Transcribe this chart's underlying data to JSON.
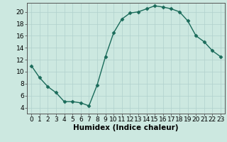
{
  "x": [
    0,
    1,
    2,
    3,
    4,
    5,
    6,
    7,
    8,
    9,
    10,
    11,
    12,
    13,
    14,
    15,
    16,
    17,
    18,
    19,
    20,
    21,
    22,
    23
  ],
  "y": [
    11,
    9,
    7.5,
    6.5,
    5,
    5,
    4.8,
    4.3,
    7.8,
    12.5,
    16.5,
    18.8,
    19.8,
    20,
    20.5,
    21,
    20.8,
    20.5,
    20,
    18.5,
    16,
    15,
    13.5,
    12.5
  ],
  "line_color": "#1a6b5a",
  "marker": "D",
  "marker_size": 2.5,
  "bg_color": "#cce8e0",
  "grid_color": "#b0d0cc",
  "xlabel": "Humidex (Indice chaleur)",
  "xlim": [
    -0.5,
    23.5
  ],
  "ylim": [
    3,
    21.5
  ],
  "yticks": [
    4,
    6,
    8,
    10,
    12,
    14,
    16,
    18,
    20
  ],
  "xticks": [
    0,
    1,
    2,
    3,
    4,
    5,
    6,
    7,
    8,
    9,
    10,
    11,
    12,
    13,
    14,
    15,
    16,
    17,
    18,
    19,
    20,
    21,
    22,
    23
  ],
  "tick_fontsize": 6.5,
  "xlabel_fontsize": 7.5,
  "line_width": 1.0
}
